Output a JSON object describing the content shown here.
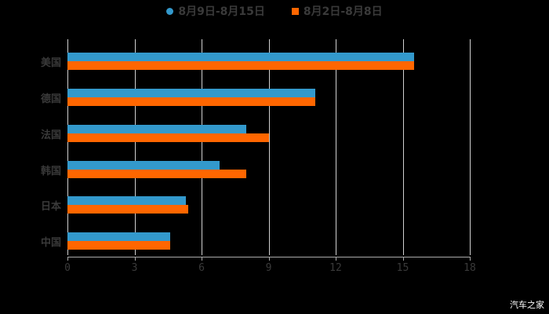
{
  "legend": [
    {
      "label": "8月9日-8月15日",
      "color": "#3399cc",
      "marker": "circle"
    },
    {
      "label": "8月2日-8月8日",
      "color": "#ff6600",
      "marker": "square"
    }
  ],
  "watermark": "汽车之家",
  "chart_data": {
    "type": "bar",
    "orientation": "horizontal",
    "title": "",
    "categories": [
      "美国",
      "德国",
      "法国",
      "韩国",
      "日本",
      "中国"
    ],
    "series": [
      {
        "name": "8月9日-8月15日",
        "color": "#3399cc",
        "values": [
          15.5,
          11.1,
          8.0,
          6.8,
          5.3,
          4.6
        ]
      },
      {
        "name": "8月2日-8月8日",
        "color": "#ff6600",
        "values": [
          15.5,
          11.1,
          9.0,
          8.0,
          5.4,
          4.6
        ]
      }
    ],
    "xlabel": "",
    "ylabel": "",
    "xlim": [
      0,
      18
    ],
    "xticks": [
      0,
      3,
      6,
      9,
      12,
      15,
      18
    ],
    "grid": true,
    "legend_position": "top"
  }
}
